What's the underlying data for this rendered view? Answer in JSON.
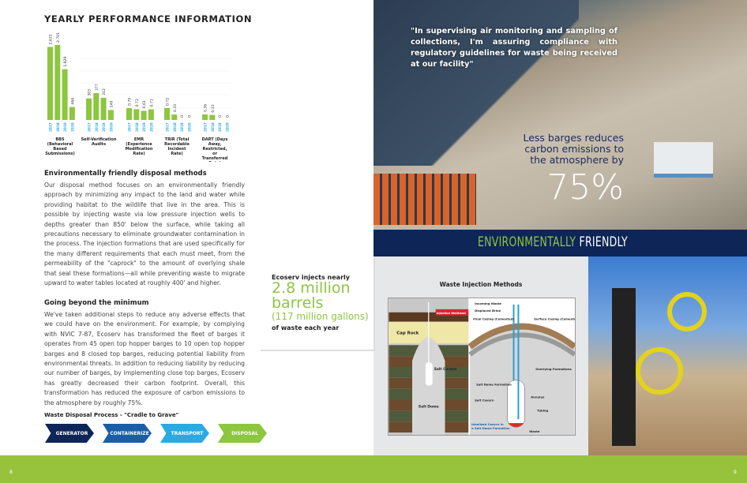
{
  "left_page": {
    "title": "YEARLY PERFORMANCE INFORMATION",
    "section1": {
      "heading": "Environmentally friendly disposal methods",
      "body": "Our disposal method focuses on an environmentally friendly approach by minimizing any impact to the land and water while providing habitat to the wildlife that live in the area. This is possible by injecting waste via low pressure injection wells to depths greater than 850' below the surface, while taking all precautions necessary to eliminate groundwater contamination in the process. The injection formations that are used specifically for the many different requirements that each must meet, from the permeability of the \"caprock\" to the amount of overlying shale that seal these formations—all while preventing waste to migrate upward to water tables located at roughly 400' and higher."
    },
    "section2": {
      "heading": "Going beyond the minimum",
      "body": "We've taken additional steps to reduce any adverse effects that we could have on the environment. For example, by complying with NVIC 7-87, Ecoserv has transformed the fleet of barges it operates from 45 open top hopper barges to 10 open top hopper barges and 8 closed top barges, reducing potential liability from environmental threats. In addition to reducing liability by reducing our number of barges, by implementing close top barges, Ecoserv has greatly decreased their carbon footprint. Overall, this transformation has reduced the exposure of carbon emissions to the atmosphere by roughly 75%."
    },
    "process": {
      "title": "Waste Disposal Process - \"Cradle to Grave\"",
      "steps": [
        {
          "label": "GENERATOR",
          "color": "#0e2557"
        },
        {
          "label": "CONTAINERIZE",
          "color": "#1b5ea8"
        },
        {
          "label": "TRANSPORT",
          "color": "#29abe2"
        },
        {
          "label": "DISPOSAL",
          "color": "#8dc63f"
        }
      ]
    },
    "page_number": "8"
  },
  "chart_data": {
    "type": "bar",
    "title": "YEARLY PERFORMANCE INFORMATION",
    "bar_color": "#8dc63f",
    "year_label_color": "#29abe2",
    "independent_scales": true,
    "groups": [
      {
        "name": "BBS (Behavioral Based Submissions)",
        "years": [
          "2017",
          "2018",
          "2019",
          "2020"
        ],
        "values": [
          2631,
          2701,
          1829,
          466
        ],
        "labels": [
          "2,631",
          "2,701",
          "1,829",
          "466"
        ]
      },
      {
        "name": "Self-Verification Audits",
        "years": [
          "2017",
          "2018",
          "2019",
          "2020"
        ],
        "values": [
          303,
          377,
          312,
          140
        ],
        "labels": [
          "303",
          "377",
          "312",
          "140"
        ]
      },
      {
        "name": "EMR (Experience Modification Rate)",
        "years": [
          "2017",
          "2018",
          "2019",
          "2020"
        ],
        "values": [
          0.79,
          0.72,
          0.61,
          0.71
        ],
        "labels": [
          "0.79",
          "0.72",
          "0.61",
          "0.71"
        ]
      },
      {
        "name": "TRIR (Total Recordable Incident Rate)",
        "years": [
          "2017",
          "2018",
          "2019",
          "2020"
        ],
        "values": [
          0.72,
          0.33,
          0,
          0
        ],
        "labels": [
          "0.72",
          "0.33",
          "0",
          "0"
        ]
      },
      {
        "name": "DART (Days Away, Restricted, or Transferred Rate)",
        "years": [
          "2017",
          "2018",
          "2019",
          "2020"
        ],
        "values": [
          0.36,
          0.33,
          0,
          0
        ],
        "labels": [
          "0.36",
          "0.33",
          "0",
          "0"
        ]
      }
    ],
    "grid": true
  },
  "right_page": {
    "quote": "\"In supervising air monitoring and sampling of collections, I'm assuring compliance with regulatory guidelines for waste being received at our facility\"",
    "stat_text": "Less barges reduces carbon emissions to the atmosphere by",
    "stat_value": "75%",
    "band": {
      "word1": "ENVIRONMENTALLY",
      "word2": "FRIENDLY",
      "color1": "#8dc63f",
      "color2": "#ffffff"
    },
    "callout": {
      "line1": "Ecoserv injects nearly",
      "big": "2.8 million barrels",
      "paren": "(117 million gallons)",
      "line3": "of waste each year"
    },
    "diagram": {
      "title": "Waste Injection Methods",
      "left_labels": [
        "Injection Wellhead",
        "Cap Rock",
        "Salt Cavern",
        "Salt Dome"
      ],
      "right_labels": [
        "Incoming Waste",
        "Displaced Brine",
        "Final Casing (Cemented)",
        "Surface Casing (Cemented)",
        "Overlying Formations",
        "Salt Dome Formation",
        "Annulus",
        "Salt Cavern",
        "Tubing",
        "Idealized Cavern in a Salt Dome Formation",
        "Waste"
      ]
    },
    "page_number": "9"
  }
}
